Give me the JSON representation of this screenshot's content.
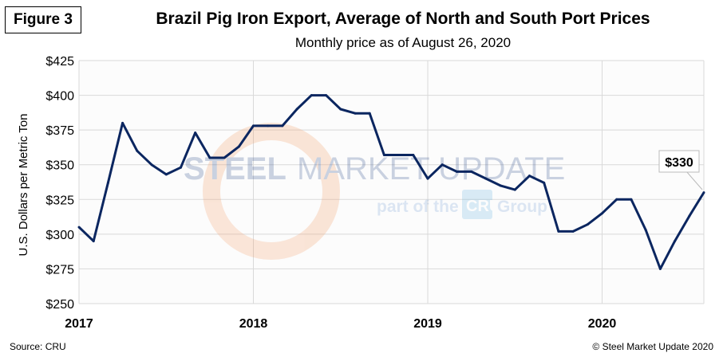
{
  "figure_label": "Figure 3",
  "footer": {
    "source": "Source: CRU",
    "copyright": "© Steel Market Update 2020"
  },
  "watermark": {
    "line1a": "STEEL",
    "line1b": "MARKET UPDATE",
    "line2a": "part of the",
    "line2b": "CRU",
    "line2c": "Group"
  },
  "chart_data": {
    "type": "line",
    "title": "Brazil Pig Iron Export, Average of North and South Port Prices",
    "subtitle": "Monthly price as of August 26, 2020",
    "ylabel": "U.S. Dollars per Metric Ton",
    "xlabel": "",
    "ylim": [
      250,
      425
    ],
    "yticks": [
      "$250",
      "$275",
      "$300",
      "$325",
      "$350",
      "$375",
      "$400",
      "$425"
    ],
    "xticks": [
      "2017",
      "2018",
      "2019",
      "2020"
    ],
    "grid": true,
    "line_color": "#0b2660",
    "annotation": "$330",
    "x": [
      "2017-01",
      "2017-02",
      "2017-03",
      "2017-04",
      "2017-05",
      "2017-06",
      "2017-07",
      "2017-08",
      "2017-09",
      "2017-10",
      "2017-11",
      "2017-12",
      "2018-01",
      "2018-02",
      "2018-03",
      "2018-04",
      "2018-05",
      "2018-06",
      "2018-07",
      "2018-08",
      "2018-09",
      "2018-10",
      "2018-11",
      "2018-12",
      "2019-01",
      "2019-02",
      "2019-03",
      "2019-04",
      "2019-05",
      "2019-06",
      "2019-07",
      "2019-08",
      "2019-09",
      "2019-10",
      "2019-11",
      "2019-12",
      "2020-01",
      "2020-02",
      "2020-03",
      "2020-04",
      "2020-05",
      "2020-06",
      "2020-07",
      "2020-08"
    ],
    "values": [
      305,
      295,
      337,
      380,
      360,
      350,
      343,
      348,
      373,
      355,
      355,
      363,
      378,
      378,
      378,
      390,
      400,
      400,
      390,
      387,
      387,
      357,
      357,
      357,
      340,
      350,
      345,
      345,
      340,
      335,
      332,
      342,
      337,
      302,
      302,
      307,
      315,
      325,
      325,
      303,
      275,
      295,
      313,
      330
    ]
  }
}
